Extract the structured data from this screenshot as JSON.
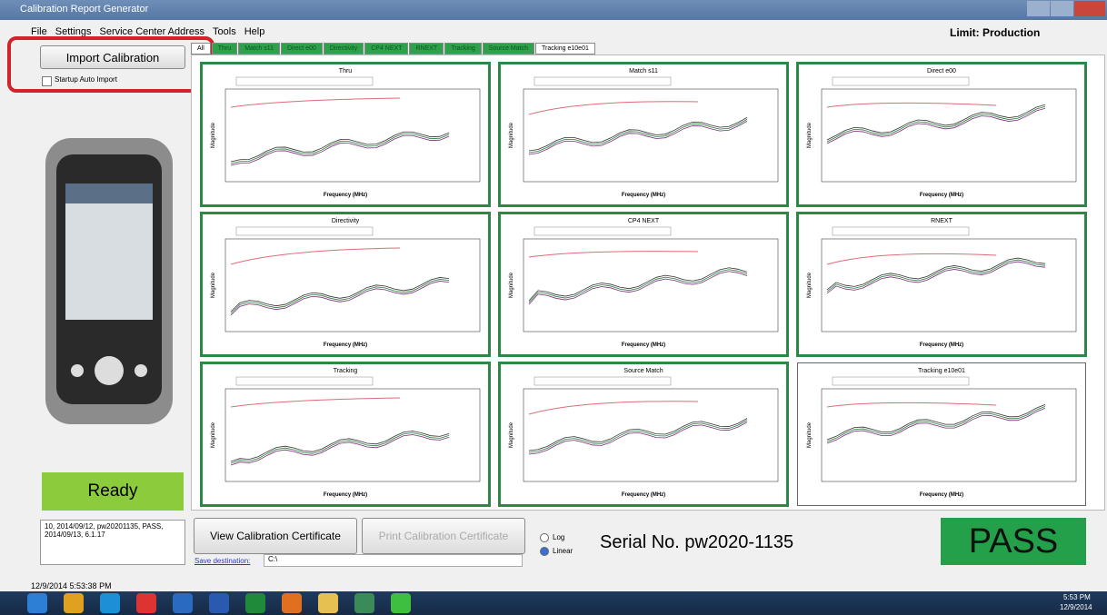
{
  "window": {
    "title": "Calibration Report Generator",
    "limit": "Limit: Production"
  },
  "menu": [
    "File",
    "Settings",
    "Service Center Address",
    "Tools",
    "Help"
  ],
  "left": {
    "import_button": "Import Calibration",
    "auto_import": "Startup Auto Import",
    "status": "Ready",
    "log": "10, 2014/09/12, pw20201135, PASS, 2014/09/13, 6.1.17"
  },
  "tabs": [
    "All",
    "Thru",
    "Match s11",
    "Direct e00",
    "Directivity",
    "CP4 NEXT",
    "RNEXT",
    "Tracking",
    "Source Match",
    "Tracking e10e01"
  ],
  "panels": [
    {
      "title": "Thru",
      "x_label": "Frequency (MHz)",
      "y_label": "Magnitude"
    },
    {
      "title": "Match s11",
      "x_label": "Frequency (MHz)",
      "y_label": "Magnitude"
    },
    {
      "title": "Direct e00",
      "x_label": "Frequency (MHz)",
      "y_label": "Magnitude"
    },
    {
      "title": "Directivity",
      "x_label": "Frequency (MHz)",
      "y_label": "Magnitude"
    },
    {
      "title": "CP4 NEXT",
      "x_label": "Frequency (MHz)",
      "y_label": "Magnitude"
    },
    {
      "title": "RNEXT",
      "x_label": "Frequency (MHz)",
      "y_label": "Magnitude"
    },
    {
      "title": "Tracking",
      "x_label": "Frequency (MHz)",
      "y_label": "Magnitude"
    },
    {
      "title": "Source Match",
      "x_label": "Frequency (MHz)",
      "y_label": "Magnitude"
    },
    {
      "title": "Tracking e10e01",
      "x_label": "Frequency (MHz)",
      "y_label": "Magnitude"
    }
  ],
  "bottom": {
    "view_button": "View Calibration Certificate",
    "print_button": "Print Calibration Certificate",
    "save_label": "Save destination:",
    "save_path": "C:\\",
    "scale_options": [
      "Log",
      "Linear"
    ],
    "serial": "Serial No. pw2020-1135",
    "result": "PASS"
  },
  "status_bar": {
    "timestamp": "12/9/2014 5:53:38 PM"
  },
  "taskbar": {
    "time": "5:53 PM",
    "date": "12/9/2014"
  }
}
